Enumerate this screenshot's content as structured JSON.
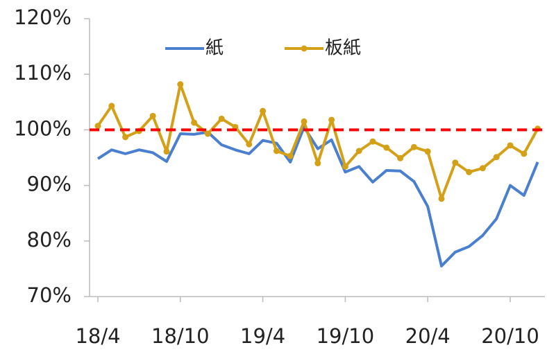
{
  "chart_data": {
    "type": "line",
    "categories": [
      "18/4",
      null,
      null,
      null,
      null,
      null,
      "18/10",
      null,
      null,
      null,
      null,
      null,
      "19/4",
      null,
      null,
      null,
      null,
      null,
      "19/10",
      null,
      null,
      null,
      null,
      null,
      "20/4",
      null,
      null,
      null,
      null,
      null,
      "20/10",
      null,
      null
    ],
    "series": [
      {
        "name": "紙",
        "color": "#4a7fd0",
        "marker": false,
        "values": [
          94.8,
          96.4,
          95.7,
          96.4,
          95.9,
          94.3,
          99.3,
          99.2,
          99.6,
          97.3,
          96.4,
          95.7,
          98.1,
          97.6,
          94.2,
          100.5,
          96.6,
          98.2,
          92.4,
          93.4,
          90.6,
          92.7,
          92.6,
          90.7,
          86.2,
          75.5,
          78.0,
          79.0,
          81.0,
          84.0,
          90.0,
          88.2,
          94.2
        ]
      },
      {
        "name": "板紙",
        "color": "#d4a017",
        "marker": true,
        "values": [
          100.7,
          104.3,
          98.7,
          99.8,
          102.5,
          96.1,
          108.2,
          101.3,
          99.3,
          102.0,
          100.5,
          97.4,
          103.4,
          96.2,
          95.3,
          101.5,
          94.0,
          101.8,
          93.4,
          96.2,
          97.9,
          96.8,
          94.9,
          96.9,
          96.1,
          87.6,
          94.1,
          92.4,
          93.1,
          95.1,
          97.2,
          95.7,
          100.2
        ]
      }
    ],
    "ylim": [
      70,
      120
    ],
    "yticks": [
      {
        "value": 70,
        "label": "70%"
      },
      {
        "value": 80,
        "label": "80%"
      },
      {
        "value": 90,
        "label": "90%"
      },
      {
        "value": 100,
        "label": "100%"
      },
      {
        "value": 110,
        "label": "110%"
      },
      {
        "value": 120,
        "label": "120%"
      }
    ],
    "reference_line": {
      "value": 100,
      "color": "#ff0000"
    },
    "legend": "top"
  }
}
